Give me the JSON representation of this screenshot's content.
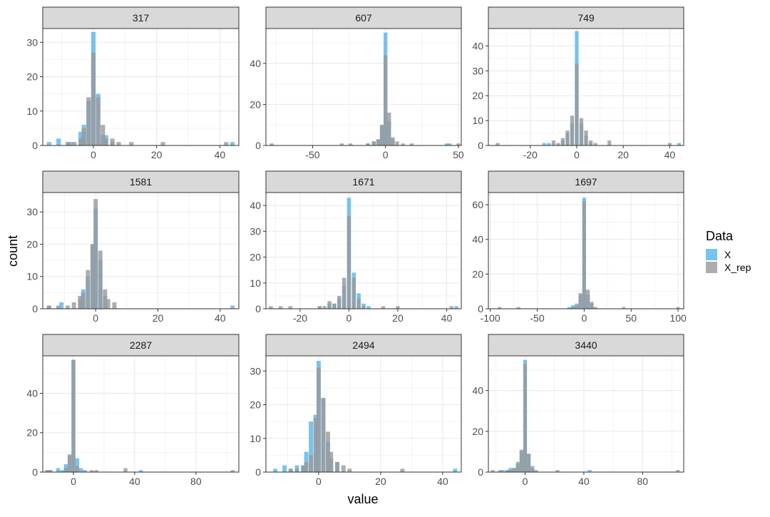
{
  "colors": {
    "X": "#56B4E9",
    "X_rep": "#999999",
    "strip_bg": "#D9D9D9",
    "grid": "#EBEBEB",
    "axis_text": "#4D4D4D"
  },
  "labels": {
    "x_axis": "value",
    "y_axis": "count"
  },
  "legend": {
    "title": "Data",
    "position": "right",
    "items": [
      {
        "key": "X",
        "label": "X"
      },
      {
        "key": "X_rep",
        "label": "X_rep"
      }
    ]
  },
  "chart_data": {
    "type": "bar",
    "facet_layout": "3x3 grid",
    "panels": [
      {
        "title": "317",
        "xlim": [
          -16,
          46
        ],
        "ylim": [
          0,
          34
        ],
        "xticks": [
          0,
          20,
          40
        ],
        "yticks": [
          0,
          10,
          20,
          30
        ],
        "bin_width": 1.4,
        "series": [
          {
            "name": "X",
            "x": [
              -14,
              -11,
              -8,
              -7,
              -4,
              -3,
              -1.5,
              0,
              1.5,
              3,
              4,
              6,
              44
            ],
            "y": [
              1,
              2,
              1,
              1,
              4,
              6,
              13,
              33,
              15,
              3,
              3,
              1,
              1
            ]
          },
          {
            "name": "X_rep",
            "x": [
              -8,
              -6,
              -4,
              -3,
              -1.5,
              0,
              1.5,
              3,
              4,
              6,
              8,
              12,
              22,
              42
            ],
            "y": [
              1,
              1,
              2,
              5,
              14,
              27,
              14,
              6,
              2,
              2,
              1,
              1,
              1,
              1
            ]
          }
        ]
      },
      {
        "title": "607",
        "xlim": [
          -82,
          52
        ],
        "ylim": [
          0,
          57
        ],
        "xticks": [
          -50,
          0,
          50
        ],
        "yticks": [
          0,
          20,
          40
        ],
        "bin_width": 2.6,
        "series": [
          {
            "name": "X",
            "x": [
              -12,
              -8,
              -5,
              -2.5,
              0,
              2.5,
              5,
              42,
              44
            ],
            "y": [
              1,
              2,
              3,
              10,
              55,
              12,
              3,
              1,
              1
            ]
          },
          {
            "name": "X_rep",
            "x": [
              -78,
              -30,
              -24,
              -12,
              -8,
              -5,
              -2.5,
              0,
              2.5,
              5,
              8,
              12,
              18,
              50
            ],
            "y": [
              1,
              1,
              1,
              1,
              2,
              3,
              10,
              44,
              16,
              4,
              2,
              1,
              1,
              1
            ]
          }
        ]
      },
      {
        "title": "749",
        "xlim": [
          -38,
          46
        ],
        "ylim": [
          0,
          47
        ],
        "xticks": [
          -20,
          0,
          20,
          40
        ],
        "yticks": [
          0,
          10,
          20,
          30,
          40
        ],
        "bin_width": 1.6,
        "series": [
          {
            "name": "X",
            "x": [
              -14,
              -12,
              -6,
              -4,
              -2,
              0,
              2,
              4,
              6,
              44
            ],
            "y": [
              1,
              1,
              2,
              5,
              9,
              46,
              9,
              4,
              1,
              1
            ]
          },
          {
            "name": "X_rep",
            "x": [
              -34,
              -10,
              -8,
              -6,
              -4,
              -2,
              0,
              2,
              4,
              6,
              8,
              14,
              40
            ],
            "y": [
              1,
              2,
              1,
              3,
              6,
              12,
              33,
              11,
              6,
              2,
              1,
              2,
              1
            ]
          }
        ]
      },
      {
        "title": "1581",
        "xlim": [
          -17,
          46
        ],
        "ylim": [
          0,
          36
        ],
        "xticks": [
          0,
          20,
          40
        ],
        "yticks": [
          0,
          10,
          20,
          30
        ],
        "bin_width": 1.35,
        "series": [
          {
            "name": "X",
            "x": [
              -15,
              -11,
              -5,
              -4,
              -2.5,
              -1,
              0,
              1.5,
              3,
              44
            ],
            "y": [
              1,
              2,
              3,
              6,
              10,
              20,
              31,
              15,
              4,
              1
            ]
          },
          {
            "name": "X_rep",
            "x": [
              -15,
              -12,
              -9,
              -7,
              -5,
              -4,
              -2.5,
              -1,
              0,
              1.5,
              3,
              4,
              6
            ],
            "y": [
              1,
              1,
              1,
              2,
              4,
              5,
              12,
              20,
              34,
              18,
              6,
              3,
              2
            ]
          }
        ]
      },
      {
        "title": "1671",
        "xlim": [
          -34,
          46
        ],
        "ylim": [
          0,
          45
        ],
        "xticks": [
          -20,
          0,
          20,
          40
        ],
        "yticks": [
          0,
          10,
          20,
          30,
          40
        ],
        "bin_width": 1.6,
        "series": [
          {
            "name": "X",
            "x": [
              -12,
              -8,
              -6,
              -4,
              -2,
              0,
              2,
              4,
              6,
              8,
              44
            ],
            "y": [
              1,
              2,
              2,
              4,
              9,
              43,
              14,
              6,
              2,
              1,
              1
            ]
          },
          {
            "name": "X_rep",
            "x": [
              -32,
              -28,
              -24,
              -12,
              -10,
              -8,
              -6,
              -4,
              -2,
              0,
              2,
              4,
              6,
              14,
              20,
              42
            ],
            "y": [
              1,
              1,
              1,
              1,
              1,
              3,
              2,
              5,
              12,
              36,
              12,
              4,
              1,
              1,
              1,
              1
            ]
          }
        ]
      },
      {
        "title": "1697",
        "xlim": [
          -102,
          106
        ],
        "ylim": [
          0,
          67
        ],
        "xticks": [
          -100,
          -50,
          0,
          50,
          100
        ],
        "yticks": [
          0,
          20,
          40,
          60
        ],
        "bin_width": 4,
        "series": [
          {
            "name": "X",
            "x": [
              -16,
              -12,
              -8,
              -4,
              0,
              4,
              8,
              42
            ],
            "y": [
              1,
              2,
              3,
              8,
              64,
              8,
              3,
              1
            ]
          },
          {
            "name": "X_rep",
            "x": [
              -90,
              -70,
              -12,
              -8,
              -4,
              0,
              4,
              8,
              12,
              100
            ],
            "y": [
              1,
              1,
              1,
              2,
              9,
              62,
              11,
              4,
              1,
              1
            ]
          }
        ]
      },
      {
        "title": "2287",
        "xlim": [
          -20,
          108
        ],
        "ylim": [
          0,
          59
        ],
        "xticks": [
          0,
          40,
          80
        ],
        "yticks": [
          0,
          20,
          40
        ],
        "bin_width": 2.5,
        "series": [
          {
            "name": "X",
            "x": [
              -17,
              -15,
              -10,
              -7.5,
              -5,
              -2.5,
              0,
              2.5,
              5,
              44
            ],
            "y": [
              1,
              1,
              2,
              1,
              4,
              8,
              57,
              7,
              2,
              1
            ]
          },
          {
            "name": "X_rep",
            "x": [
              -17,
              -15,
              -5,
              -2.5,
              0,
              2.5,
              7.5,
              12,
              15,
              34,
              104
            ],
            "y": [
              1,
              1,
              2,
              9,
              57,
              3,
              1,
              1,
              1,
              2,
              1
            ]
          }
        ]
      },
      {
        "title": "2494",
        "xlim": [
          -17,
          46
        ],
        "ylim": [
          0,
          34.5
        ],
        "xticks": [
          0,
          20,
          40
        ],
        "yticks": [
          0,
          10,
          20,
          30
        ],
        "bin_width": 1.35,
        "series": [
          {
            "name": "X",
            "x": [
              -14,
              -11,
              -9,
              -7,
              -5,
              -4,
              -2.5,
              -1,
              0,
              1.5,
              3,
              4,
              6,
              44
            ],
            "y": [
              1,
              2,
              1,
              2,
              2,
              6,
              15,
              17,
              33,
              22,
              9,
              4,
              3,
              1
            ]
          },
          {
            "name": "X_rep",
            "x": [
              -9,
              -7,
              -5,
              -4,
              -2.5,
              -1,
              0,
              1.5,
              3,
              4,
              6,
              8,
              10,
              27
            ],
            "y": [
              1,
              1,
              2,
              3,
              5,
              16,
              31,
              22,
              12,
              6,
              3,
              2,
              1,
              1
            ]
          }
        ]
      },
      {
        "title": "3440",
        "xlim": [
          -25,
          108
        ],
        "ylim": [
          0,
          57
        ],
        "xticks": [
          0,
          40,
          80
        ],
        "yticks": [
          0,
          20,
          40
        ],
        "bin_width": 2.5,
        "series": [
          {
            "name": "X",
            "x": [
              -15,
              -12,
              -10,
              -7.5,
              -5,
              -2.5,
              0,
              2.5,
              5,
              44
            ],
            "y": [
              1,
              1,
              2,
              2,
              4,
              10,
              55,
              9,
              2,
              1
            ]
          },
          {
            "name": "X_rep",
            "x": [
              -22,
              -17,
              -12,
              -10,
              -7.5,
              -5,
              -2.5,
              0,
              2.5,
              5,
              7.5,
              22,
              104
            ],
            "y": [
              1,
              1,
              1,
              1,
              2,
              5,
              11,
              53,
              9,
              3,
              1,
              1,
              1
            ]
          }
        ]
      }
    ]
  }
}
